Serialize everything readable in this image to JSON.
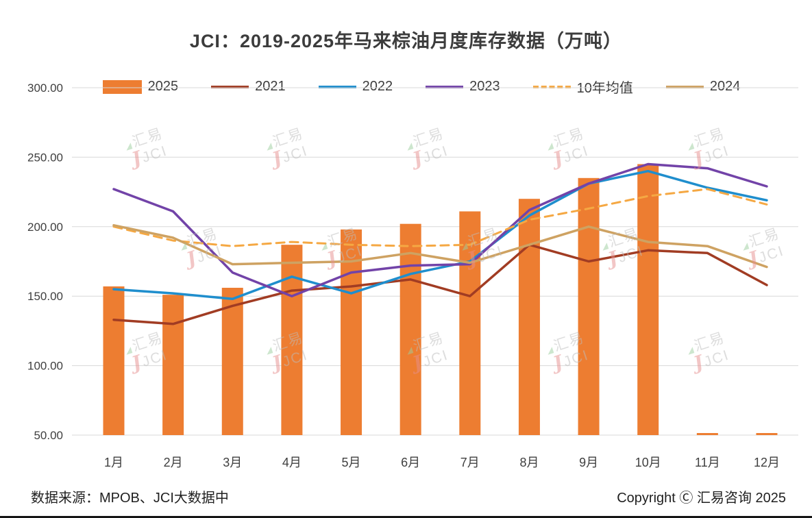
{
  "chart_data": {
    "type": "bar",
    "title": "JCI：2019-2025年马来棕油月度库存数据（万吨）",
    "categories": [
      "1月",
      "2月",
      "3月",
      "4月",
      "5月",
      "6月",
      "7月",
      "8月",
      "9月",
      "10月",
      "11月",
      "12月"
    ],
    "y_ticks": [
      "300.00",
      "250.00",
      "200.00",
      "150.00",
      "100.00",
      "50.00"
    ],
    "ylim": [
      50,
      300
    ],
    "grid": "horizontal",
    "legend_position": "top",
    "series": [
      {
        "name": "2025",
        "type": "bar",
        "color": "#ED7D31",
        "values": [
          157,
          151,
          156,
          187,
          198,
          202,
          211,
          220,
          235,
          245,
          null,
          null
        ]
      },
      {
        "name": "2021",
        "type": "line",
        "color": "#A13C23",
        "values": [
          133,
          130,
          143,
          154,
          157,
          162,
          150,
          187,
          175,
          183,
          181,
          158
        ]
      },
      {
        "name": "2022",
        "type": "line",
        "color": "#1F8ECD",
        "values": [
          155,
          152,
          148,
          164,
          152,
          166,
          175,
          208,
          231,
          240,
          228,
          219
        ]
      },
      {
        "name": "2023",
        "type": "line",
        "color": "#7243A8",
        "values": [
          227,
          211,
          167,
          150,
          167,
          172,
          173,
          212,
          231,
          245,
          242,
          229
        ]
      },
      {
        "name": "10年均值",
        "type": "line",
        "dashed": true,
        "color": "#F5A843",
        "values": [
          200,
          190,
          186,
          189,
          187,
          186,
          187,
          205,
          213,
          222,
          227,
          216
        ]
      },
      {
        "name": "2024",
        "type": "line",
        "color": "#CEA262",
        "values": [
          201,
          192,
          173,
          174,
          175,
          181,
          174,
          187,
          200,
          189,
          186,
          171
        ]
      }
    ]
  },
  "watermark": {
    "brand": "汇易",
    "abbr": "JCI"
  },
  "footer": {
    "source": "数据来源：MPOB、JCI大数据中",
    "copyright": "Copyright Ⓒ 汇易咨询 2025"
  }
}
